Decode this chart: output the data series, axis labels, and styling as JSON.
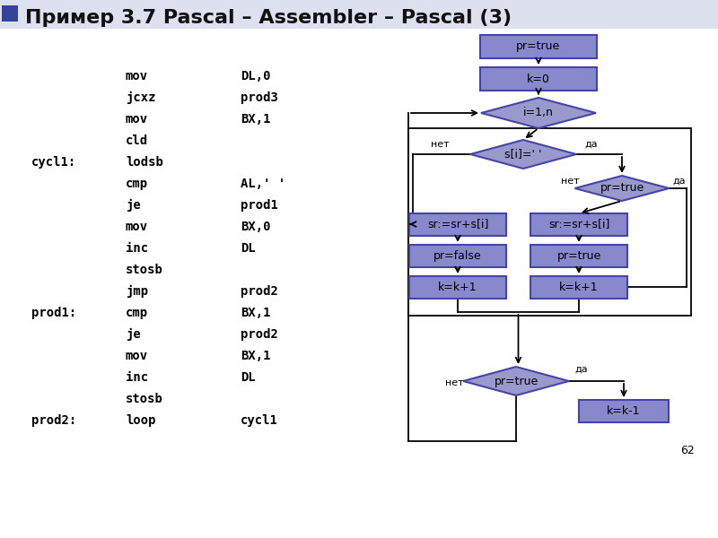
{
  "title": "Пример 3.7 Pascal – Assembler – Pascal (3)",
  "title_fontsize": 16,
  "bg_color": "#ffffff",
  "header_bar_color": "#ccccdd",
  "box_fill": "#8888cc",
  "box_fill2": "#9999dd",
  "diamond_fill": "#9999cc",
  "box_edge": "#4444aa",
  "text_color": "#000000",
  "page_number": "62",
  "asm_code": [
    [
      "",
      "mov",
      "DL,0"
    ],
    [
      "",
      "jcxz",
      "prod3"
    ],
    [
      "",
      "mov",
      "BX,1"
    ],
    [
      "",
      "cld",
      ""
    ],
    [
      "cycl1:",
      "lodsb",
      ""
    ],
    [
      "",
      "cmp",
      "AL,' '"
    ],
    [
      "",
      "je",
      "prod1"
    ],
    [
      "",
      "mov",
      "BX,0"
    ],
    [
      "",
      "inc",
      "DL"
    ],
    [
      "",
      "stosb",
      ""
    ],
    [
      "",
      "jmp",
      "prod2"
    ],
    [
      "prod1:",
      "cmp",
      "BX,1"
    ],
    [
      "",
      "je",
      "prod2"
    ],
    [
      "",
      "mov",
      "BX,1"
    ],
    [
      "",
      "inc",
      "DL"
    ],
    [
      "",
      "stosb",
      ""
    ],
    [
      "prod2:",
      "loop",
      "cycl1"
    ]
  ]
}
